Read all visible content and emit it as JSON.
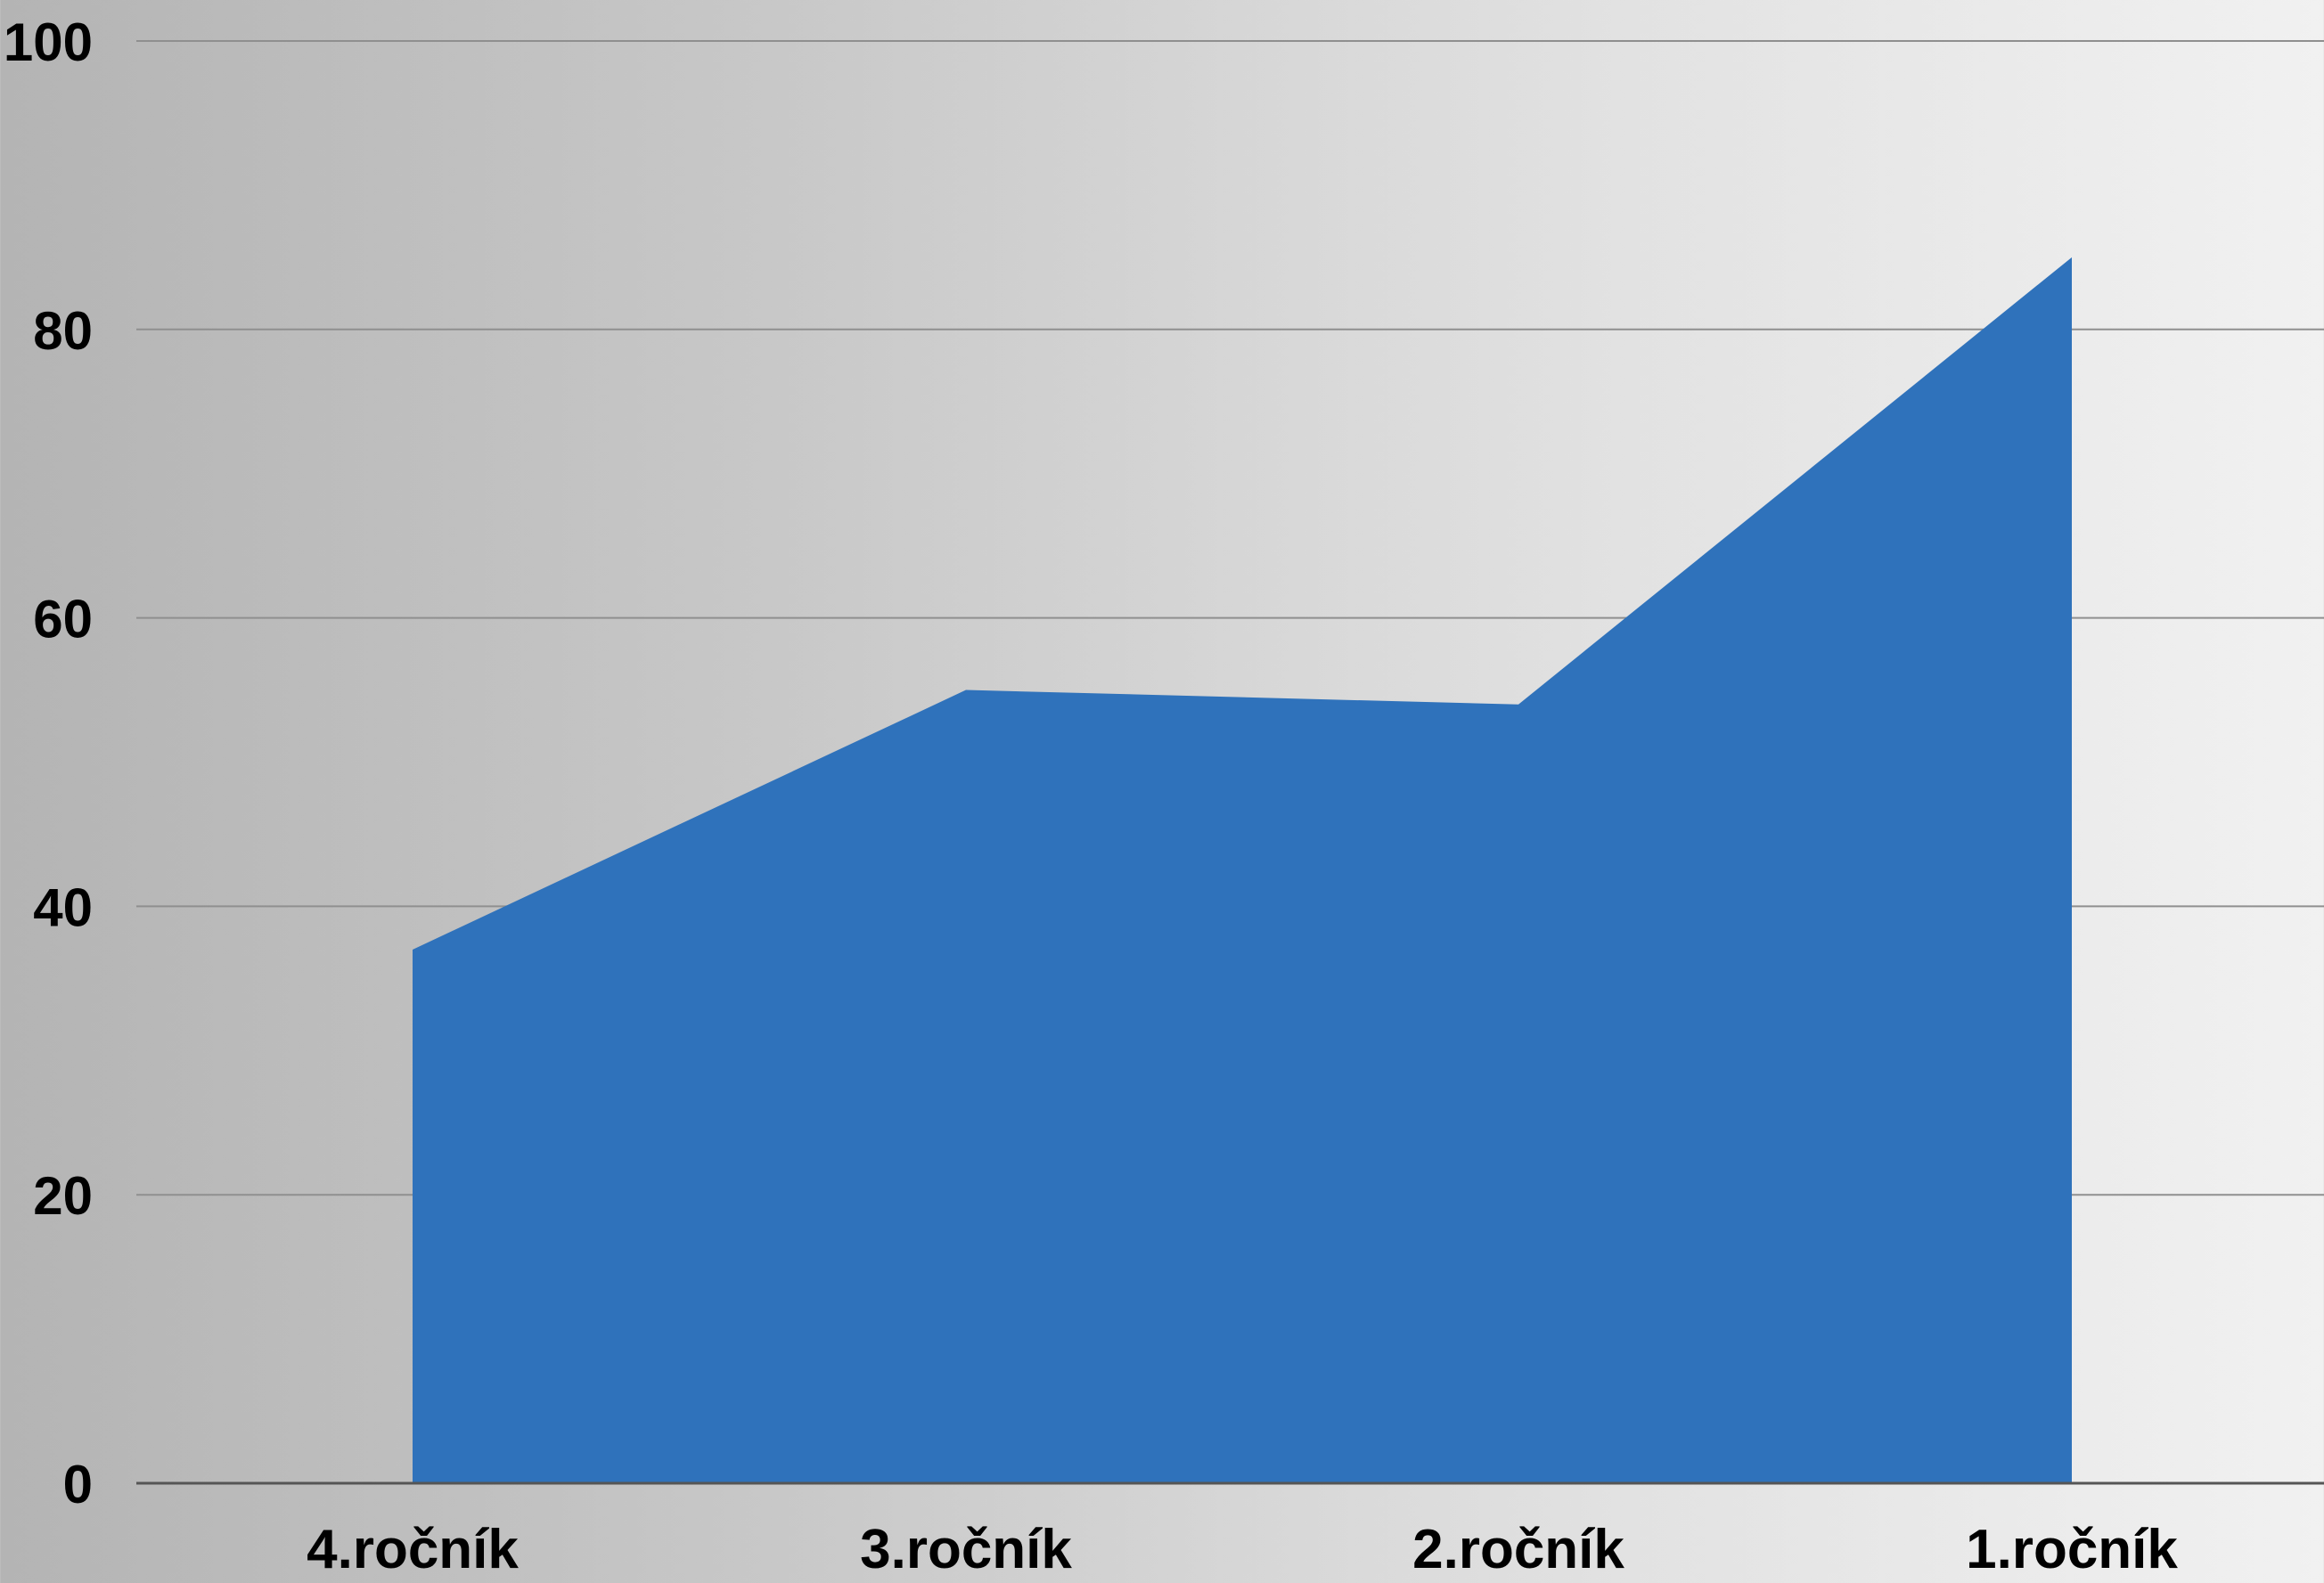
{
  "chart_data": {
    "type": "area",
    "title": "",
    "xlabel": "",
    "ylabel": "",
    "categories": [
      "4.ročník",
      "3.ročník",
      "2.ročník",
      "1.ročník"
    ],
    "series": [
      {
        "values": [
          37,
          55,
          54,
          85
        ]
      }
    ],
    "ylim": [
      0,
      100
    ],
    "yticks": [
      "0",
      "20",
      "40",
      "60",
      "80",
      "100"
    ],
    "grid": true,
    "legend": "none",
    "colors": {
      "fill": "#2f72bb",
      "grid": "#8f8f8f",
      "axis": "#555555",
      "text": "#000000"
    }
  }
}
